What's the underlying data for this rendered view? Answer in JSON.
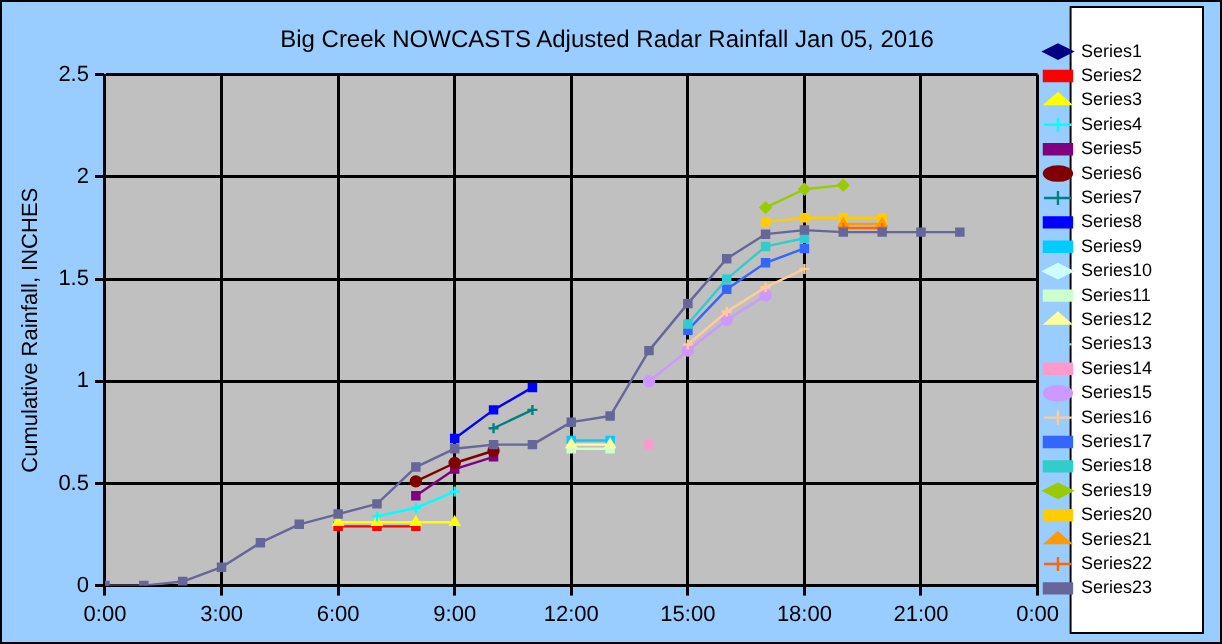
{
  "chart_data": {
    "type": "line",
    "title": "Big Creek NOWCASTS Adjusted Radar Rainfall Jan 05, 2016",
    "ylabel": "Cumulative Rainfall, INCHES",
    "xlim": [
      0,
      24
    ],
    "xticks": [
      {
        "value": 0,
        "label": "0:00"
      },
      {
        "value": 3,
        "label": "3:00"
      },
      {
        "value": 6,
        "label": "6:00"
      },
      {
        "value": 9,
        "label": "9:00"
      },
      {
        "value": 12,
        "label": "12:00"
      },
      {
        "value": 15,
        "label": "15:00"
      },
      {
        "value": 18,
        "label": "18:00"
      },
      {
        "value": 21,
        "label": "21:00"
      },
      {
        "value": 24,
        "label": "0:00"
      }
    ],
    "ylim": [
      0,
      2.5
    ],
    "yticks": [
      0,
      0.5,
      1,
      1.5,
      2,
      2.5
    ],
    "grid": true,
    "legend": "right",
    "line_style": "solid",
    "series": [
      {
        "name": "Series1",
        "color": "#000080",
        "marker": "diamond"
      },
      {
        "name": "Series2",
        "color": "#ff0000",
        "marker": "square",
        "x": [
          6,
          7,
          8
        ],
        "values": [
          0.29,
          0.29,
          0.29
        ]
      },
      {
        "name": "Series3",
        "color": "#ffff00",
        "marker": "triangle",
        "x": [
          6,
          7,
          8,
          9
        ],
        "values": [
          0.31,
          0.31,
          0.31,
          0.31
        ]
      },
      {
        "name": "Series4",
        "color": "#00ffff",
        "marker": "cross",
        "x": [
          7,
          8,
          9
        ],
        "values": [
          0.34,
          0.38,
          0.46
        ]
      },
      {
        "name": "Series5",
        "color": "#800080",
        "marker": "square",
        "x": [
          8,
          9,
          10
        ],
        "values": [
          0.44,
          0.57,
          0.63
        ]
      },
      {
        "name": "Series6",
        "color": "#800000",
        "marker": "circle",
        "x": [
          8,
          9,
          10
        ],
        "values": [
          0.51,
          0.6,
          0.66
        ]
      },
      {
        "name": "Series7",
        "color": "#008080",
        "marker": "cross",
        "x": [
          10,
          11
        ],
        "values": [
          0.77,
          0.86
        ]
      },
      {
        "name": "Series8",
        "color": "#0000ff",
        "marker": "square",
        "x": [
          9,
          10,
          11
        ],
        "values": [
          0.72,
          0.86,
          0.97
        ]
      },
      {
        "name": "Series9",
        "color": "#00ccff",
        "marker": "square",
        "x": [
          12,
          13
        ],
        "values": [
          0.71,
          0.71
        ]
      },
      {
        "name": "Series10",
        "color": "#ccffff",
        "marker": "diamond"
      },
      {
        "name": "Series11",
        "color": "#ccffcc",
        "marker": "square",
        "x": [
          12,
          13
        ],
        "values": [
          0.67,
          0.67
        ]
      },
      {
        "name": "Series12",
        "color": "#ffff99",
        "marker": "triangle",
        "x": [
          12,
          13
        ],
        "values": [
          0.69,
          0.69
        ]
      },
      {
        "name": "Series13",
        "color": "#99ccff",
        "marker": "cross"
      },
      {
        "name": "Series14",
        "color": "#ff99cc",
        "marker": "square",
        "x": [
          14
        ],
        "values": [
          0.69
        ]
      },
      {
        "name": "Series15",
        "color": "#cc99ff",
        "marker": "circle",
        "x": [
          14,
          15,
          16,
          17
        ],
        "values": [
          1,
          1.15,
          1.3,
          1.42
        ]
      },
      {
        "name": "Series16",
        "color": "#ffcc99",
        "marker": "cross",
        "x": [
          15,
          16,
          17,
          18
        ],
        "values": [
          1.18,
          1.34,
          1.46,
          1.55
        ]
      },
      {
        "name": "Series17",
        "color": "#3366ff",
        "marker": "square",
        "x": [
          15,
          16,
          17,
          18
        ],
        "values": [
          1.25,
          1.45,
          1.58,
          1.65
        ]
      },
      {
        "name": "Series18",
        "color": "#33cccc",
        "marker": "square",
        "x": [
          15,
          16,
          17,
          18
        ],
        "values": [
          1.28,
          1.5,
          1.66,
          1.7
        ]
      },
      {
        "name": "Series19",
        "color": "#99cc00",
        "marker": "diamond",
        "x": [
          17,
          18,
          19
        ],
        "values": [
          1.85,
          1.94,
          1.96
        ]
      },
      {
        "name": "Series20",
        "color": "#ffcc00",
        "marker": "square",
        "x": [
          17,
          18,
          19,
          20
        ],
        "values": [
          1.78,
          1.8,
          1.8,
          1.8
        ]
      },
      {
        "name": "Series21",
        "color": "#ff9900",
        "marker": "triangle",
        "x": [
          19,
          20
        ],
        "values": [
          1.77,
          1.77
        ]
      },
      {
        "name": "Series22",
        "color": "#ff6600",
        "marker": "cross",
        "x": [
          19,
          20
        ],
        "values": [
          1.75,
          1.75
        ]
      },
      {
        "name": "Series23",
        "color": "#666699",
        "marker": "square",
        "x": [
          0,
          1,
          2,
          3,
          4,
          5,
          6,
          7,
          8,
          9,
          10,
          11,
          12,
          13,
          14,
          15,
          16,
          17,
          18,
          19,
          20,
          21,
          22
        ],
        "values": [
          0,
          0,
          0.02,
          0.09,
          0.21,
          0.3,
          0.35,
          0.4,
          0.58,
          0.67,
          0.69,
          0.69,
          0.8,
          0.83,
          1.15,
          1.38,
          1.6,
          1.72,
          1.74,
          1.73,
          1.73,
          1.73,
          1.73
        ]
      }
    ]
  }
}
